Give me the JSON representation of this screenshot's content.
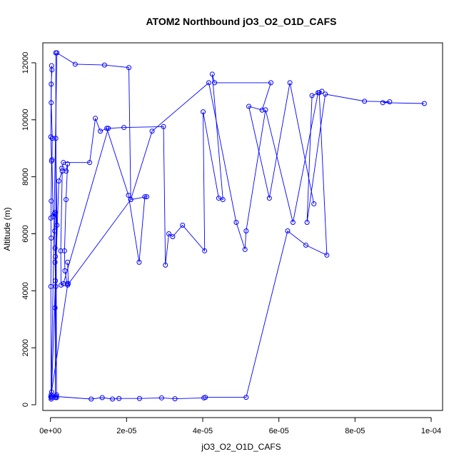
{
  "chart_data": {
    "type": "line",
    "title": "ATOM2 Northbound jO3_O2_O1D_CAFS",
    "xlabel": "jO3_O2_O1D_CAFS",
    "ylabel": "Altitude (m)",
    "xlim": [
      -2e-06,
      0.000103
    ],
    "ylim": [
      -200,
      12700
    ],
    "x_ticks": [
      {
        "value": 0,
        "label": "0e+00"
      },
      {
        "value": 2e-05,
        "label": "2e-05"
      },
      {
        "value": 4e-05,
        "label": "4e-05"
      },
      {
        "value": 6e-05,
        "label": "6e-05"
      },
      {
        "value": 8e-05,
        "label": "8e-05"
      },
      {
        "value": 0.0001,
        "label": "1e-04"
      }
    ],
    "y_ticks": [
      {
        "value": 0,
        "label": "0"
      },
      {
        "value": 2000,
        "label": "2000"
      },
      {
        "value": 4000,
        "label": "4000"
      },
      {
        "value": 6000,
        "label": "6000"
      },
      {
        "value": 8000,
        "label": "8000"
      },
      {
        "value": 10000,
        "label": "10000"
      },
      {
        "value": 12000,
        "label": "12000"
      }
    ],
    "grid": false,
    "series_color": "#0000ff",
    "marker": "open-circle",
    "series": [
      {
        "x": [
          2e-07,
          1e-07,
          2e-07,
          1e-07,
          2e-07,
          1e-07,
          2e-07,
          3e-07,
          1e-07,
          2e-07,
          4e-07,
          3e-07,
          2e-07,
          5e-07,
          4e-07,
          7e-07,
          1e-06,
          1.2e-06,
          1.1e-06,
          1.2e-06,
          1.3e-06,
          1.4e-06,
          1.2e-06,
          1.3e-06,
          1.5e-06,
          1.6e-06,
          1.4e-06,
          1.7e-06,
          1.2e-06,
          1.3e-06,
          1.6e-06,
          1.4e-06
        ],
        "y": [
          200,
          280,
          350,
          4150,
          5850,
          6550,
          7150,
          8550,
          9400,
          11250,
          11750,
          11900,
          10600,
          9350,
          8600,
          6600,
          6700,
          6750,
          6100,
          5500,
          5200,
          4150,
          3400,
          250,
          300,
          350,
          9350,
          6300,
          5000,
          4350,
          250,
          12350
        ]
      },
      {
        "x": [
          2e-07,
          1.7e-06,
          6.5e-06,
          1.42e-05,
          2.06e-05,
          2.11e-05,
          2.53e-05,
          2.48e-05,
          2.33e-05,
          2.05e-05,
          1.48e-05,
          1.31e-05,
          1.18e-05,
          1.03e-05,
          3.4e-06,
          3e-06,
          4.1e-06,
          4.5e-06,
          4.1e-06,
          3.7e-06,
          3.8e-06,
          4.4e-06,
          4.7e-06,
          4.5e-06
        ],
        "y": [
          250,
          12350,
          11950,
          11920,
          11830,
          7200,
          7300,
          7300,
          5000,
          7350,
          9700,
          9600,
          10050,
          8500,
          8500,
          8300,
          8200,
          8450,
          7200,
          5400,
          4700,
          4250,
          4250,
          5000
        ]
      },
      {
        "x": [
          3e-07,
          2.2e-06,
          3.1e-06,
          2.7e-06,
          2.8e-06,
          3.4e-06,
          1.52e-05,
          1.93e-05,
          2.97e-05,
          3.02e-05,
          3.11e-05,
          3.21e-05,
          3.47e-05,
          4.05e-05,
          4.01e-05,
          4.42e-05,
          4.53e-05,
          4.25e-05,
          4.31e-05,
          5.79e-05,
          5.56e-05,
          5.21e-05,
          5.75e-05,
          6.29e-05,
          6.92e-05
        ],
        "y": [
          450,
          7850,
          8200,
          5400,
          4200,
          4250,
          9700,
          9730,
          9760,
          4900,
          6000,
          5900,
          6300,
          5400,
          10280,
          7250,
          7200,
          11600,
          11300,
          11300,
          10340,
          10470,
          7250,
          11300,
          7050
        ]
      },
      {
        "x": [
          4e-07,
          1.07e-05,
          1.36e-05,
          1.63e-05,
          1.8e-05,
          2.34e-05,
          2.92e-05,
          3.27e-05,
          4.03e-05,
          4.07e-05,
          5.14e-05,
          6.23e-05,
          6.71e-05,
          7.26e-05,
          7.06e-05,
          6.87e-05,
          6.74e-05,
          7.22e-05,
          8.25e-05,
          8.91e-05,
          8.73e-05,
          9.82e-05
        ],
        "y": [
          300,
          200,
          250,
          200,
          220,
          220,
          240,
          210,
          240,
          260,
          260,
          6100,
          5600,
          5250,
          10950,
          10850,
          6400,
          10900,
          10650,
          10630,
          10600,
          10570
        ]
      },
      {
        "x": [
          1e-07,
          4.5e-06,
          2.11e-05,
          2.67e-05,
          4.16e-05,
          4.88e-05,
          5.11e-05,
          5.14e-05,
          5.65e-05,
          6.37e-05,
          7.03e-05,
          7.13e-05
        ],
        "y": [
          280,
          4200,
          7200,
          9600,
          11300,
          6400,
          5450,
          6100,
          10350,
          6400,
          10950,
          11000
        ]
      }
    ]
  }
}
